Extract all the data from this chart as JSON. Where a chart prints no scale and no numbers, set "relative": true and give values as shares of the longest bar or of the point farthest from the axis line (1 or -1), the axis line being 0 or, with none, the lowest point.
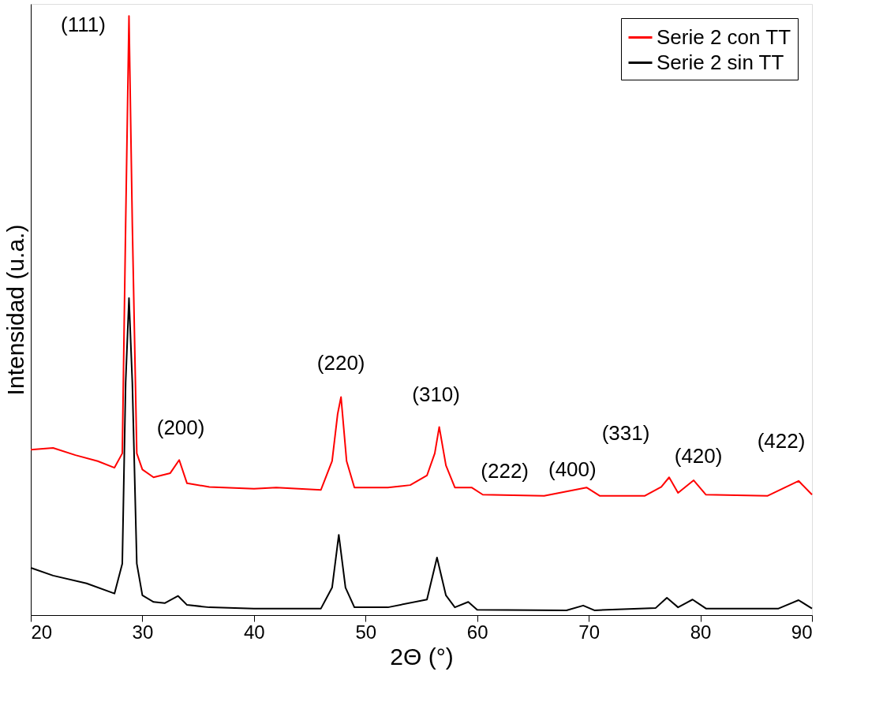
{
  "chart_data": {
    "type": "line",
    "relative": true,
    "xlabel": "2Θ (°)",
    "ylabel": "Intensidad (u.a.)",
    "xlim": [
      20,
      90
    ],
    "xticks": [
      20,
      30,
      40,
      50,
      60,
      70,
      80,
      90
    ],
    "legend": "top right",
    "grid": false,
    "marker": "none",
    "line_style": "solid",
    "series": [
      {
        "name": "Serie 2 con TT",
        "color": "#ff0000",
        "x": [
          20,
          22,
          24,
          26,
          27.5,
          28.2,
          28.5,
          28.8,
          29.1,
          29.5,
          30,
          31,
          32.5,
          33.3,
          34,
          36,
          40,
          42,
          46,
          47,
          47.5,
          47.8,
          48.3,
          49,
          52,
          54,
          55.5,
          56.2,
          56.6,
          57.2,
          58,
          59.5,
          60.5,
          66,
          69.8,
          71,
          75,
          76.5,
          77.2,
          78,
          79.4,
          80.5,
          86,
          88.8,
          90
        ],
        "values": [
          0.276,
          0.279,
          0.267,
          0.257,
          0.246,
          0.27,
          0.651,
          1,
          0.651,
          0.27,
          0.243,
          0.23,
          0.237,
          0.259,
          0.22,
          0.214,
          0.211,
          0.213,
          0.209,
          0.257,
          0.336,
          0.364,
          0.257,
          0.213,
          0.213,
          0.217,
          0.233,
          0.27,
          0.314,
          0.25,
          0.213,
          0.213,
          0.201,
          0.199,
          0.213,
          0.199,
          0.199,
          0.214,
          0.23,
          0.204,
          0.225,
          0.201,
          0.199,
          0.224,
          0.201
        ]
      },
      {
        "name": "Serie 2 sin TT",
        "color": "#000000",
        "x": [
          20,
          22,
          25,
          27.5,
          28.2,
          28.5,
          28.8,
          29.1,
          29.5,
          30,
          31,
          32,
          33.2,
          34,
          36,
          40,
          46,
          47,
          47.6,
          48.2,
          49,
          52,
          55.5,
          56.4,
          57.2,
          58,
          59.2,
          60,
          68,
          69.5,
          70.5,
          76,
          77,
          78,
          79.3,
          80.5,
          87,
          88.8,
          90
        ],
        "values": [
          0.079,
          0.066,
          0.053,
          0.036,
          0.086,
          0.388,
          0.529,
          0.388,
          0.086,
          0.033,
          0.022,
          0.02,
          0.032,
          0.017,
          0.013,
          0.011,
          0.011,
          0.046,
          0.134,
          0.046,
          0.013,
          0.013,
          0.026,
          0.096,
          0.033,
          0.013,
          0.022,
          0.009,
          0.008,
          0.016,
          0.008,
          0.012,
          0.029,
          0.013,
          0.026,
          0.011,
          0.011,
          0.025,
          0.011
        ]
      }
    ],
    "annotations": [
      {
        "text": "(111)",
        "x": 28.8,
        "y": 1
      },
      {
        "text": "(200)",
        "x": 33.3,
        "y": 0.259
      },
      {
        "text": "(220)",
        "x": 47.8,
        "y": 0.364
      },
      {
        "text": "(310)",
        "x": 56.6,
        "y": 0.314
      },
      {
        "text": "(222)",
        "x": 59.5,
        "y": 0.213
      },
      {
        "text": "(400)",
        "x": 69.8,
        "y": 0.213
      },
      {
        "text": "(331)",
        "x": 77.2,
        "y": 0.23
      },
      {
        "text": "(420)",
        "x": 79.4,
        "y": 0.225
      },
      {
        "text": "(422)",
        "x": 88.8,
        "y": 0.224
      }
    ]
  }
}
